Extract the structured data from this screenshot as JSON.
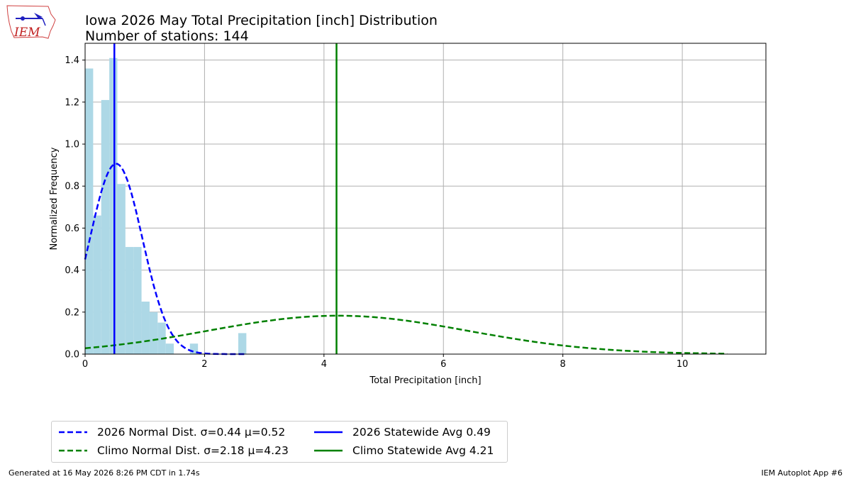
{
  "header": {
    "title": "Iowa 2026 May Total Precipitation [inch] Distribution",
    "subtitle": "Number of stations: 144"
  },
  "logo": {
    "text": "IEM"
  },
  "footer": {
    "left": "Generated at 16 May 2026 8:26 PM CDT in 1.74s",
    "right": "IEM Autoplot App #6"
  },
  "colors": {
    "histogram": "#add8e6",
    "current": "#0000ff",
    "climo": "#008000",
    "grid": "#b0b0b0"
  },
  "chart_data": {
    "type": "bar",
    "xlabel": "Total Precipitation [inch]",
    "ylabel": "Normalized Frequency",
    "xlim": [
      0,
      11.4
    ],
    "ylim": [
      0,
      1.48
    ],
    "xticks": [
      0,
      2,
      4,
      6,
      8,
      10
    ],
    "yticks": [
      0.0,
      0.2,
      0.4,
      0.6,
      0.8,
      1.0,
      1.2,
      1.4
    ],
    "xtick_labels": [
      "0",
      "2",
      "4",
      "6",
      "8",
      "10"
    ],
    "ytick_labels": [
      "0.0",
      "0.2",
      "0.4",
      "0.6",
      "0.8",
      "1.0",
      "1.2",
      "1.4"
    ],
    "grid": true,
    "legend_position": "below-left",
    "histogram": {
      "bin_width": 0.135,
      "bin_starts": [
        0,
        0.135,
        0.27,
        0.405,
        0.54,
        0.675,
        0.81,
        0.945,
        1.08,
        1.215,
        1.35,
        1.485,
        1.62,
        1.755,
        1.89,
        2.025,
        2.16,
        2.295,
        2.43,
        2.565,
        2.7
      ],
      "values": [
        1.36,
        0.66,
        1.21,
        1.41,
        0.81,
        0.51,
        0.51,
        0.25,
        0.2,
        0.15,
        0.05,
        0.0,
        0.0,
        0.05,
        0.0,
        0.0,
        0.0,
        0.0,
        0.0,
        0.1,
        0.0
      ]
    },
    "series": [
      {
        "name": "2026 Normal Dist. σ=0.44 μ=0.52",
        "kind": "normal",
        "mu": 0.52,
        "sigma": 0.44,
        "x_range": [
          0,
          2.7
        ],
        "style": "dashed",
        "color": "#0000ff"
      },
      {
        "name": "Climo Normal Dist. σ=2.18 μ=4.23",
        "kind": "normal",
        "mu": 4.23,
        "sigma": 2.18,
        "x_range": [
          0,
          10.75
        ],
        "style": "dashed",
        "color": "#008000"
      },
      {
        "name": "2026 Statewide Avg 0.49",
        "kind": "vline",
        "x": 0.49,
        "style": "solid",
        "color": "#0000ff"
      },
      {
        "name": "Climo Statewide Avg 4.21",
        "kind": "vline",
        "x": 4.21,
        "style": "solid",
        "color": "#008000"
      }
    ]
  }
}
